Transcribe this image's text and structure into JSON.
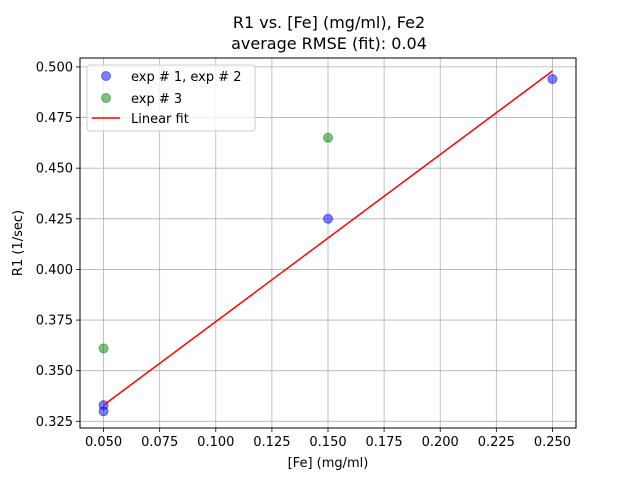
{
  "chart_data": {
    "type": "scatter",
    "title": "R1 vs. [Fe] (mg/ml), Fe2",
    "subtitle": "average RMSE (fit): 0.04",
    "xlabel": "[Fe] (mg/ml)",
    "ylabel": "R1 (1/sec)",
    "xlim": [
      0.0395,
      0.2605
    ],
    "ylim": [
      0.3217,
      0.5044
    ],
    "xticks": [
      0.05,
      0.075,
      0.1,
      0.125,
      0.15,
      0.175,
      0.2,
      0.225,
      0.25
    ],
    "xtick_labels": [
      "0.050",
      "0.075",
      "0.100",
      "0.125",
      "0.150",
      "0.175",
      "0.200",
      "0.225",
      "0.250"
    ],
    "yticks": [
      0.325,
      0.35,
      0.375,
      0.4,
      0.425,
      0.45,
      0.475,
      0.5
    ],
    "ytick_labels": [
      "0.325",
      "0.350",
      "0.375",
      "0.400",
      "0.425",
      "0.450",
      "0.475",
      "0.500"
    ],
    "grid": true,
    "legend_position": "top-left",
    "series": [
      {
        "name": "exp # 1, exp # 2",
        "kind": "scatter",
        "color": "#0000ff",
        "x": [
          0.05,
          0.05,
          0.15,
          0.25
        ],
        "y": [
          0.333,
          0.33,
          0.425,
          0.494
        ]
      },
      {
        "name": "exp # 3",
        "kind": "scatter",
        "color": "#008000",
        "x": [
          0.05,
          0.15
        ],
        "y": [
          0.361,
          0.465
        ]
      },
      {
        "name": "Linear fit",
        "kind": "line",
        "color": "#ff0000",
        "x": [
          0.05,
          0.25
        ],
        "y": [
          0.333,
          0.498
        ]
      }
    ]
  }
}
